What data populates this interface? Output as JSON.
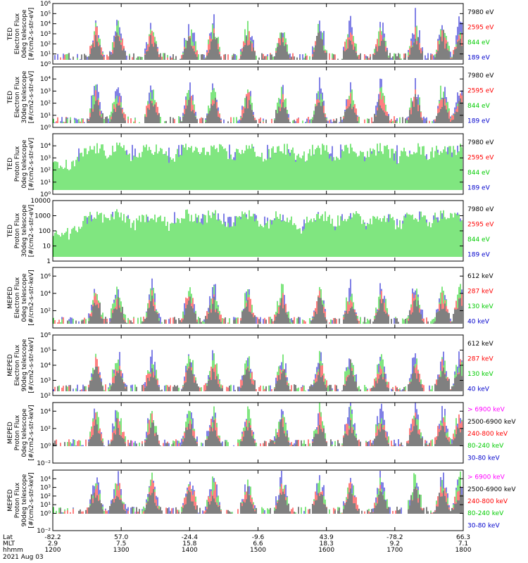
{
  "chart_data": [
    {
      "type": "line",
      "ylabel": [
        "TED",
        "Electron Flux",
        "0deg telescope",
        "[#/cm2-s-str-eV]"
      ],
      "yscale": "log",
      "ylim": [
        1,
        1000000
      ],
      "yticks": [
        {
          "v": 1,
          "label": "10⁰"
        },
        {
          "v": 10,
          "label": "10¹"
        },
        {
          "v": 100,
          "label": "10²"
        },
        {
          "v": 1000,
          "label": "10³"
        },
        {
          "v": 10000,
          "label": "10⁴"
        },
        {
          "v": 100000,
          "label": "10⁵"
        },
        {
          "v": 1000000,
          "label": "10⁶"
        }
      ],
      "series": [
        {
          "name": "7980 eV",
          "color": "#000000"
        },
        {
          "name": "2595 eV",
          "color": "#ff0000"
        },
        {
          "name": "844 eV",
          "color": "#00cc00"
        },
        {
          "name": "189 eV",
          "color": "#0000cc"
        }
      ]
    },
    {
      "type": "line",
      "ylabel": [
        "TED",
        "Electron Flux",
        "30deg telescope",
        "[#/cm2-s-str-eV]"
      ],
      "yscale": "log",
      "ylim": [
        1,
        100000
      ],
      "yticks": [
        {
          "v": 1,
          "label": "10⁰"
        },
        {
          "v": 10,
          "label": "10¹"
        },
        {
          "v": 100,
          "label": "10²"
        },
        {
          "v": 1000,
          "label": "10³"
        },
        {
          "v": 10000,
          "label": "10⁴"
        }
      ],
      "series": [
        {
          "name": "7980 eV",
          "color": "#000000"
        },
        {
          "name": "2595 eV",
          "color": "#ff0000"
        },
        {
          "name": "844 eV",
          "color": "#00cc00"
        },
        {
          "name": "189 eV",
          "color": "#0000cc"
        }
      ]
    },
    {
      "type": "line",
      "ylabel": [
        "TED",
        "Proton Flux",
        "0deg telescope",
        "[#/cm2-s-str-eV]"
      ],
      "yscale": "log",
      "ylim": [
        1,
        100000
      ],
      "yticks": [
        {
          "v": 1,
          "label": "10⁰"
        },
        {
          "v": 10,
          "label": "10¹"
        },
        {
          "v": 100,
          "label": "10²"
        },
        {
          "v": 1000,
          "label": "10³"
        },
        {
          "v": 10000,
          "label": "10⁴"
        }
      ],
      "series": [
        {
          "name": "7980 eV",
          "color": "#000000"
        },
        {
          "name": "2595 eV",
          "color": "#ff0000"
        },
        {
          "name": "844 eV",
          "color": "#00cc00"
        },
        {
          "name": "189 eV",
          "color": "#0000cc"
        }
      ]
    },
    {
      "type": "line",
      "ylabel": [
        "TED",
        "Proton Flux",
        "30deg telescope",
        "[#/cm2-s-str-eV]"
      ],
      "yscale": "log",
      "ylim": [
        1,
        10000
      ],
      "yticks": [
        {
          "v": 1,
          "label": "1"
        },
        {
          "v": 10,
          "label": "10"
        },
        {
          "v": 100,
          "label": "100"
        },
        {
          "v": 1000,
          "label": "1000"
        },
        {
          "v": 10000,
          "label": "10000"
        }
      ],
      "series": [
        {
          "name": "7980 eV",
          "color": "#000000"
        },
        {
          "name": "2595 eV",
          "color": "#ff0000"
        },
        {
          "name": "844 eV",
          "color": "#00cc00"
        },
        {
          "name": "189 eV",
          "color": "#0000cc"
        }
      ]
    },
    {
      "type": "line",
      "ylabel": [
        "MEPED",
        "Electron Flux",
        "0deg telescope",
        "[#/cm2-s-str-keV]"
      ],
      "yscale": "log",
      "ylim": [
        1,
        10000000
      ],
      "yticks": [
        {
          "v": 100,
          "label": "10²"
        },
        {
          "v": 10000,
          "label": "10⁴"
        },
        {
          "v": 1000000,
          "label": "10⁶"
        }
      ],
      "series": [
        {
          "name": "612 keV",
          "color": "#000000"
        },
        {
          "name": "287 keV",
          "color": "#ff0000"
        },
        {
          "name": "130 keV",
          "color": "#00cc00"
        },
        {
          "name": "40 keV",
          "color": "#0000cc"
        }
      ]
    },
    {
      "type": "line",
      "ylabel": [
        "MEPED",
        "Electron Flux",
        "90deg telescope",
        "[#/cm2-s-str-keV]"
      ],
      "yscale": "log",
      "ylim": [
        100,
        1000000
      ],
      "yticks": [
        {
          "v": 100,
          "label": "10²"
        },
        {
          "v": 1000,
          "label": "10³"
        },
        {
          "v": 10000,
          "label": "10⁴"
        },
        {
          "v": 100000,
          "label": "10⁵"
        },
        {
          "v": 1000000,
          "label": "10⁶"
        }
      ],
      "series": [
        {
          "name": "612 keV",
          "color": "#000000"
        },
        {
          "name": "287 keV",
          "color": "#ff0000"
        },
        {
          "name": "130 keV",
          "color": "#00cc00"
        },
        {
          "name": "40 keV",
          "color": "#0000cc"
        }
      ]
    },
    {
      "type": "line",
      "ylabel": [
        "MEPED",
        "Proton Flux",
        "0deg telescope",
        "[#/cm2-s-str-keV]"
      ],
      "yscale": "log",
      "ylim": [
        0.01,
        100000
      ],
      "yticks": [
        {
          "v": 0.01,
          "label": "10⁻²"
        },
        {
          "v": 1,
          "label": "10⁰"
        },
        {
          "v": 100,
          "label": "10²"
        },
        {
          "v": 10000,
          "label": "10⁴"
        }
      ],
      "series": [
        {
          "name": "> 6900 keV",
          "color": "#ff00ff"
        },
        {
          "name": "2500-6900 keV",
          "color": "#000000"
        },
        {
          "name": "240-800 keV",
          "color": "#ff0000"
        },
        {
          "name": "80-240 keV",
          "color": "#00cc00"
        },
        {
          "name": "30-80 keV",
          "color": "#0000cc"
        }
      ]
    },
    {
      "type": "line",
      "ylabel": [
        "MEPED",
        "Proton Flux",
        "90deg telescope",
        "[#/cm2-s-str-keV]"
      ],
      "yscale": "log",
      "ylim": [
        0.01,
        100000
      ],
      "yticks": [
        {
          "v": 0.01,
          "label": "10⁻²"
        },
        {
          "v": 1,
          "label": "10⁰"
        },
        {
          "v": 10,
          "label": "10¹"
        },
        {
          "v": 100,
          "label": "10²"
        },
        {
          "v": 1000,
          "label": "10³"
        },
        {
          "v": 10000,
          "label": "10⁴"
        }
      ],
      "series": [
        {
          "name": "> 6900 keV",
          "color": "#ff00ff"
        },
        {
          "name": "2500-6900 keV",
          "color": "#000000"
        },
        {
          "name": "240-800 keV",
          "color": "#ff0000"
        },
        {
          "name": "80-240 keV",
          "color": "#00cc00"
        },
        {
          "name": "30-80 keV",
          "color": "#0000cc"
        }
      ]
    }
  ],
  "x_axis": {
    "xlim": [
      1200,
      1800
    ],
    "ticks": [
      {
        "hhmm": "1200",
        "lat": "-82.2",
        "mlt": "2.9"
      },
      {
        "hhmm": "1300",
        "lat": "57.0",
        "mlt": "7.5"
      },
      {
        "hhmm": "1400",
        "lat": "-24.4",
        "mlt": "15.8"
      },
      {
        "hhmm": "1500",
        "lat": "-9.6",
        "mlt": "6.6"
      },
      {
        "hhmm": "1600",
        "lat": "43.9",
        "mlt": "18.3"
      },
      {
        "hhmm": "1700",
        "lat": "-78.2",
        "mlt": "9.2"
      },
      {
        "hhmm": "1800",
        "lat": "66.3",
        "mlt": "7.1"
      }
    ],
    "row_labels": [
      "Lat",
      "MLT",
      "hhmm"
    ],
    "date": "2021 Aug 03"
  }
}
